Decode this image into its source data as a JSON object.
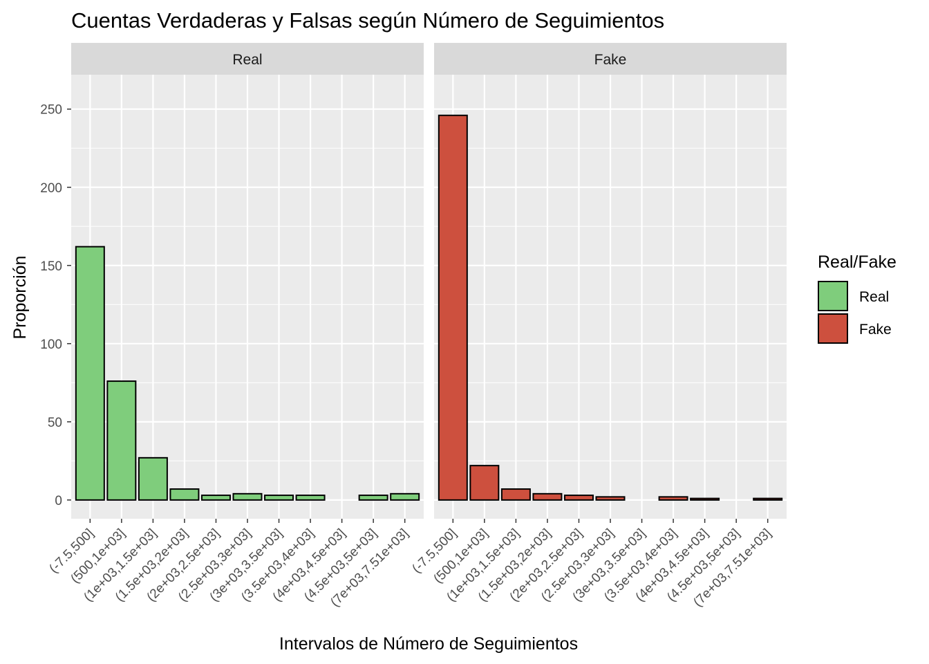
{
  "chart_data": {
    "type": "bar",
    "title": "Cuentas Verdaderas y Falsas según Número de Seguimientos",
    "xlabel": "Intervalos de Número de Seguimientos",
    "ylabel": "Proporción",
    "ylim": [
      -12,
      272
    ],
    "yticks": [
      0,
      50,
      100,
      150,
      200,
      250
    ],
    "ytick_labels": [
      "0",
      "50",
      "100",
      "150",
      "200",
      "250"
    ],
    "grid": true,
    "legend": {
      "title": "Real/Fake",
      "placement": "right",
      "items": [
        {
          "label": "Real",
          "color": "#7FCD7C"
        },
        {
          "label": "Fake",
          "color": "#CD503E"
        }
      ]
    },
    "facets": [
      {
        "label": "Real",
        "color": "#7FCD7C",
        "categories": [
          "(-7.5,500]",
          "(500,1e+03]",
          "(1e+03,1.5e+03]",
          "(1.5e+03,2e+03]",
          "(2e+03,2.5e+03]",
          "(2.5e+03,3e+03]",
          "(3e+03,3.5e+03]",
          "(3.5e+03,4e+03]",
          "(4e+03,4.5e+03]",
          "(4.5e+03,5e+03]",
          "(7e+03,7.51e+03]"
        ],
        "values": [
          162,
          76,
          27,
          7,
          3,
          4,
          3,
          3,
          0,
          3,
          4
        ]
      },
      {
        "label": "Fake",
        "color": "#CD503E",
        "categories": [
          "(-7.5,500]",
          "(500,1e+03]",
          "(1e+03,1.5e+03]",
          "(1.5e+03,2e+03]",
          "(2e+03,2.5e+03]",
          "(2.5e+03,3e+03]",
          "(3e+03,3.5e+03]",
          "(3.5e+03,4e+03]",
          "(4e+03,4.5e+03]",
          "(4.5e+03,5e+03]",
          "(7e+03,7.51e+03]"
        ],
        "values": [
          246,
          22,
          7,
          4,
          3,
          2,
          0,
          2,
          1,
          0,
          1
        ]
      }
    ]
  }
}
